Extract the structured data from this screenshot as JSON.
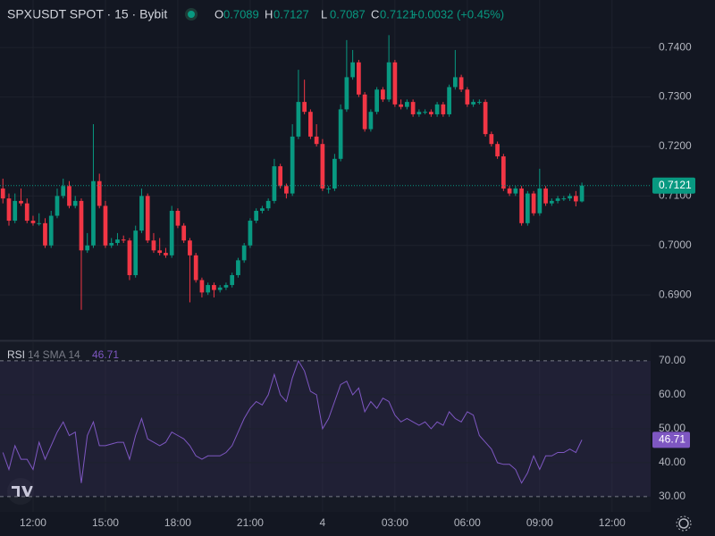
{
  "chart_data": [
    {
      "type": "candlestick",
      "title": "SPXUSDT SPOT · 15 · Bybit",
      "ohlc_labels": [
        "O",
        "H",
        "L",
        "C"
      ],
      "change_label": "+0.0032 (+0.45%)",
      "x": [
        -1.25,
        -1,
        -0.75,
        -0.5,
        -0.25,
        0,
        0.25,
        0.5,
        0.75,
        1,
        1.25,
        1.5,
        1.75,
        2,
        2.25,
        2.5,
        2.75,
        3,
        3.25,
        3.5,
        3.75,
        4,
        4.25,
        4.5,
        4.75,
        5,
        5.25,
        5.5,
        5.75,
        6,
        6.25,
        6.5,
        6.75,
        7,
        7.25,
        7.5,
        7.75,
        8,
        8.25,
        8.5,
        8.75,
        9,
        9.25,
        9.5,
        9.75,
        10,
        10.25,
        10.5,
        10.75,
        11,
        11.25,
        11.5,
        11.75,
        12,
        12.25,
        12.5,
        12.75,
        13,
        13.25,
        13.5,
        13.75,
        14,
        14.25,
        14.5,
        14.75,
        15,
        15.25,
        15.5,
        15.75,
        16,
        16.25,
        16.5,
        16.75,
        17,
        17.25,
        17.5,
        17.75,
        18,
        18.25,
        18.5,
        18.75,
        19,
        19.25,
        19.5,
        19.75,
        20,
        20.25,
        20.5,
        20.75,
        21,
        21.25,
        21.5,
        21.75,
        22,
        22.25,
        22.5,
        22.75
      ],
      "xlim": [
        -1.37,
        25.6
      ],
      "xticks": [
        {
          "value": 0,
          "label": "12:00"
        },
        {
          "value": 3,
          "label": "15:00"
        },
        {
          "value": 6,
          "label": "18:00"
        },
        {
          "value": 9,
          "label": "21:00"
        },
        {
          "value": 12,
          "label": "4"
        },
        {
          "value": 15,
          "label": "03:00"
        },
        {
          "value": 18,
          "label": "06:00"
        },
        {
          "value": 21,
          "label": "09:00"
        },
        {
          "value": 24,
          "label": "12:00"
        }
      ],
      "open": [
        0.7115,
        0.7095,
        0.705,
        0.709,
        0.7085,
        0.705,
        0.7045,
        0.7045,
        0.7,
        0.706,
        0.71,
        0.712,
        0.708,
        0.709,
        0.699,
        0.7,
        0.713,
        0.708,
        0.7,
        0.7005,
        0.7012,
        0.701,
        0.694,
        0.703,
        0.71,
        0.701,
        0.699,
        0.6985,
        0.698,
        0.707,
        0.704,
        0.701,
        0.698,
        0.693,
        0.6905,
        0.692,
        0.691,
        0.6915,
        0.692,
        0.694,
        0.697,
        0.7,
        0.705,
        0.707,
        0.7075,
        0.709,
        0.716,
        0.712,
        0.7105,
        0.722,
        0.729,
        0.727,
        0.722,
        0.7205,
        0.7115,
        0.7115,
        0.7175,
        0.7275,
        0.734,
        0.737,
        0.7305,
        0.7235,
        0.727,
        0.7315,
        0.7295,
        0.737,
        0.7285,
        0.728,
        0.729,
        0.7265,
        0.727,
        0.727,
        0.7265,
        0.7285,
        0.7265,
        0.732,
        0.734,
        0.7315,
        0.7285,
        0.729,
        0.729,
        0.7225,
        0.7205,
        0.718,
        0.7115,
        0.7105,
        0.7115,
        0.7045,
        0.7105,
        0.7065,
        0.7115,
        0.7085,
        0.709,
        0.7095,
        0.7095,
        0.71,
        0.7089
      ],
      "high": [
        0.7135,
        0.7105,
        0.7105,
        0.7115,
        0.7095,
        0.706,
        0.7065,
        0.7055,
        0.707,
        0.7115,
        0.7135,
        0.713,
        0.71,
        0.7095,
        0.7025,
        0.7245,
        0.7145,
        0.709,
        0.7015,
        0.7025,
        0.702,
        0.7015,
        0.704,
        0.7115,
        0.7105,
        0.7025,
        0.7015,
        0.6995,
        0.708,
        0.7075,
        0.7045,
        0.7015,
        0.6985,
        0.6935,
        0.6925,
        0.6925,
        0.692,
        0.6925,
        0.6945,
        0.6975,
        0.7005,
        0.7055,
        0.7075,
        0.708,
        0.7095,
        0.7175,
        0.7165,
        0.7125,
        0.7245,
        0.7355,
        0.7335,
        0.7275,
        0.7245,
        0.7215,
        0.712,
        0.7185,
        0.7285,
        0.7415,
        0.7395,
        0.7375,
        0.731,
        0.7275,
        0.732,
        0.732,
        0.7425,
        0.7375,
        0.7295,
        0.7295,
        0.7295,
        0.7275,
        0.7275,
        0.7275,
        0.729,
        0.729,
        0.7325,
        0.7395,
        0.7345,
        0.732,
        0.7295,
        0.7295,
        0.7295,
        0.723,
        0.721,
        0.7185,
        0.712,
        0.712,
        0.712,
        0.711,
        0.711,
        0.7155,
        0.712,
        0.7095,
        0.71,
        0.71,
        0.7105,
        0.711,
        0.7127
      ],
      "low": [
        0.7085,
        0.704,
        0.7045,
        0.708,
        0.7045,
        0.704,
        0.704,
        0.6995,
        0.6995,
        0.7055,
        0.7095,
        0.7075,
        0.7075,
        0.687,
        0.6985,
        0.6995,
        0.7075,
        0.6995,
        0.6995,
        0.7,
        0.7005,
        0.693,
        0.6935,
        0.7025,
        0.7005,
        0.6985,
        0.698,
        0.6975,
        0.6975,
        0.7035,
        0.7005,
        0.6885,
        0.6925,
        0.6895,
        0.69,
        0.6895,
        0.6905,
        0.691,
        0.6915,
        0.6935,
        0.6965,
        0.6995,
        0.7045,
        0.7065,
        0.707,
        0.7085,
        0.7115,
        0.7095,
        0.71,
        0.7215,
        0.7265,
        0.7215,
        0.72,
        0.711,
        0.7105,
        0.711,
        0.717,
        0.727,
        0.7335,
        0.73,
        0.723,
        0.723,
        0.7265,
        0.729,
        0.729,
        0.728,
        0.7275,
        0.7275,
        0.726,
        0.726,
        0.7265,
        0.726,
        0.726,
        0.726,
        0.726,
        0.7315,
        0.731,
        0.728,
        0.728,
        0.7285,
        0.722,
        0.72,
        0.7175,
        0.711,
        0.71,
        0.71,
        0.704,
        0.704,
        0.706,
        0.706,
        0.708,
        0.708,
        0.7085,
        0.709,
        0.709,
        0.7079,
        0.7087
      ],
      "close": [
        0.7095,
        0.705,
        0.709,
        0.7085,
        0.705,
        0.7045,
        0.7045,
        0.7,
        0.706,
        0.71,
        0.712,
        0.708,
        0.709,
        0.699,
        0.7,
        0.713,
        0.708,
        0.7,
        0.7005,
        0.7012,
        0.701,
        0.694,
        0.703,
        0.71,
        0.701,
        0.699,
        0.6985,
        0.698,
        0.707,
        0.704,
        0.701,
        0.698,
        0.693,
        0.6905,
        0.692,
        0.691,
        0.6915,
        0.692,
        0.694,
        0.697,
        0.7,
        0.705,
        0.707,
        0.7075,
        0.709,
        0.716,
        0.712,
        0.7105,
        0.722,
        0.729,
        0.727,
        0.722,
        0.7205,
        0.7115,
        0.7115,
        0.7175,
        0.7275,
        0.734,
        0.737,
        0.7305,
        0.7235,
        0.727,
        0.7315,
        0.7295,
        0.737,
        0.7285,
        0.728,
        0.729,
        0.7265,
        0.727,
        0.727,
        0.7265,
        0.7285,
        0.7265,
        0.732,
        0.734,
        0.7315,
        0.7285,
        0.729,
        0.729,
        0.7225,
        0.7205,
        0.718,
        0.7115,
        0.7105,
        0.7115,
        0.7045,
        0.7105,
        0.7065,
        0.7115,
        0.7085,
        0.709,
        0.7095,
        0.7095,
        0.71,
        0.7089,
        0.7121
      ],
      "up_color": "#089981",
      "down_color": "#f23645",
      "ylim": [
        0.681,
        0.7496
      ],
      "yticks": [
        {
          "value": 0.69,
          "label": "0.6900"
        },
        {
          "value": 0.7,
          "label": "0.7000"
        },
        {
          "value": 0.71,
          "label": "0.7100"
        },
        {
          "value": 0.72,
          "label": "0.7200"
        },
        {
          "value": 0.73,
          "label": "0.7300"
        },
        {
          "value": 0.74,
          "label": "0.7400"
        }
      ],
      "grid": true
    },
    {
      "type": "line",
      "subtitle": "14 SMA 14",
      "series": [
        {
          "name": "RSI",
          "color": "#7e57c2",
          "values": [
            43,
            38,
            45,
            41,
            41,
            38,
            46,
            41,
            45,
            49,
            52,
            48,
            49,
            34,
            48,
            52,
            45,
            45,
            45.5,
            46,
            46,
            41,
            48,
            53,
            47,
            46,
            45,
            46,
            49,
            48,
            47,
            45,
            42,
            41,
            42,
            42,
            42,
            43,
            45,
            49,
            53,
            56,
            58,
            57,
            60,
            66,
            60,
            58,
            65,
            70,
            67,
            61,
            60,
            50,
            53,
            58,
            63,
            64,
            60,
            62,
            55,
            58,
            56,
            59,
            58,
            54,
            52,
            53,
            52,
            51,
            52,
            50,
            52,
            51,
            55,
            53,
            52,
            55,
            54,
            48,
            46,
            44,
            40,
            39.5,
            39.5,
            38,
            34,
            37,
            42,
            38,
            42,
            42,
            43,
            43,
            44,
            43,
            46.71
          ]
        }
      ],
      "ylim": [
        25.5,
        75.5
      ],
      "yticks": [
        {
          "value": 30,
          "label": "30.00"
        },
        {
          "value": 40,
          "label": "40.00"
        },
        {
          "value": 50,
          "label": "50.00"
        },
        {
          "value": 60,
          "label": "60.00"
        },
        {
          "value": 70,
          "label": "70.00"
        }
      ]
    }
  ]
}
